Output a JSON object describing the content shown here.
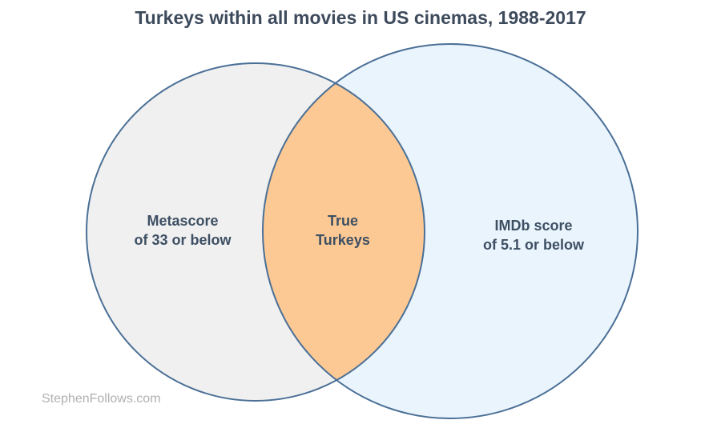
{
  "title": "Turkeys within all movies in US cinemas, 1988-2017",
  "sets": [
    {
      "label": [
        "Metascore",
        "of 33 or below"
      ]
    },
    {
      "label": [
        "IMDb score",
        "of 5.1 or below"
      ]
    }
  ],
  "intersection": {
    "label": [
      "True",
      "Turkeys"
    ]
  },
  "watermark": "StephenFollows.com"
}
